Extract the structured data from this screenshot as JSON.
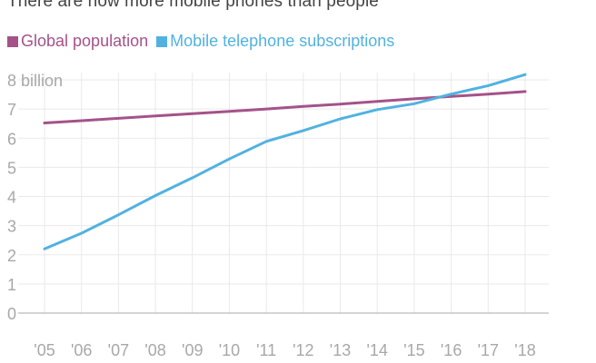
{
  "title": "There are now more mobile phones than people",
  "colors": {
    "population": "#a5528a",
    "mobile": "#51b2e0",
    "grid": "#e9e9e9",
    "axis": "#a9a9a9",
    "tick_text": "#a8a8a8"
  },
  "chart_data": {
    "type": "line",
    "title": "There are now more mobile phones than people",
    "xlabel": "",
    "ylabel": "",
    "x": [
      "'05",
      "'06",
      "'07",
      "'08",
      "'09",
      "'10",
      "'11",
      "'12",
      "'13",
      "'14",
      "'15",
      "'16",
      "'17",
      "'18"
    ],
    "y_ticks": [
      "0",
      "1",
      "2",
      "3",
      "4",
      "5",
      "6",
      "7",
      "8 billion"
    ],
    "ylim": [
      0,
      8
    ],
    "grid": true,
    "legend": "top-left",
    "series": [
      {
        "name": "Global population",
        "color": "#a5528a",
        "values": [
          6.52,
          6.6,
          6.68,
          6.76,
          6.84,
          6.92,
          7.0,
          7.09,
          7.17,
          7.26,
          7.35,
          7.43,
          7.51,
          7.6
        ]
      },
      {
        "name": "Mobile telephone subscriptions",
        "color": "#51b2e0",
        "values": [
          2.2,
          2.74,
          3.37,
          4.03,
          4.64,
          5.29,
          5.89,
          6.26,
          6.66,
          6.98,
          7.18,
          7.51,
          7.8,
          8.18
        ]
      }
    ]
  }
}
